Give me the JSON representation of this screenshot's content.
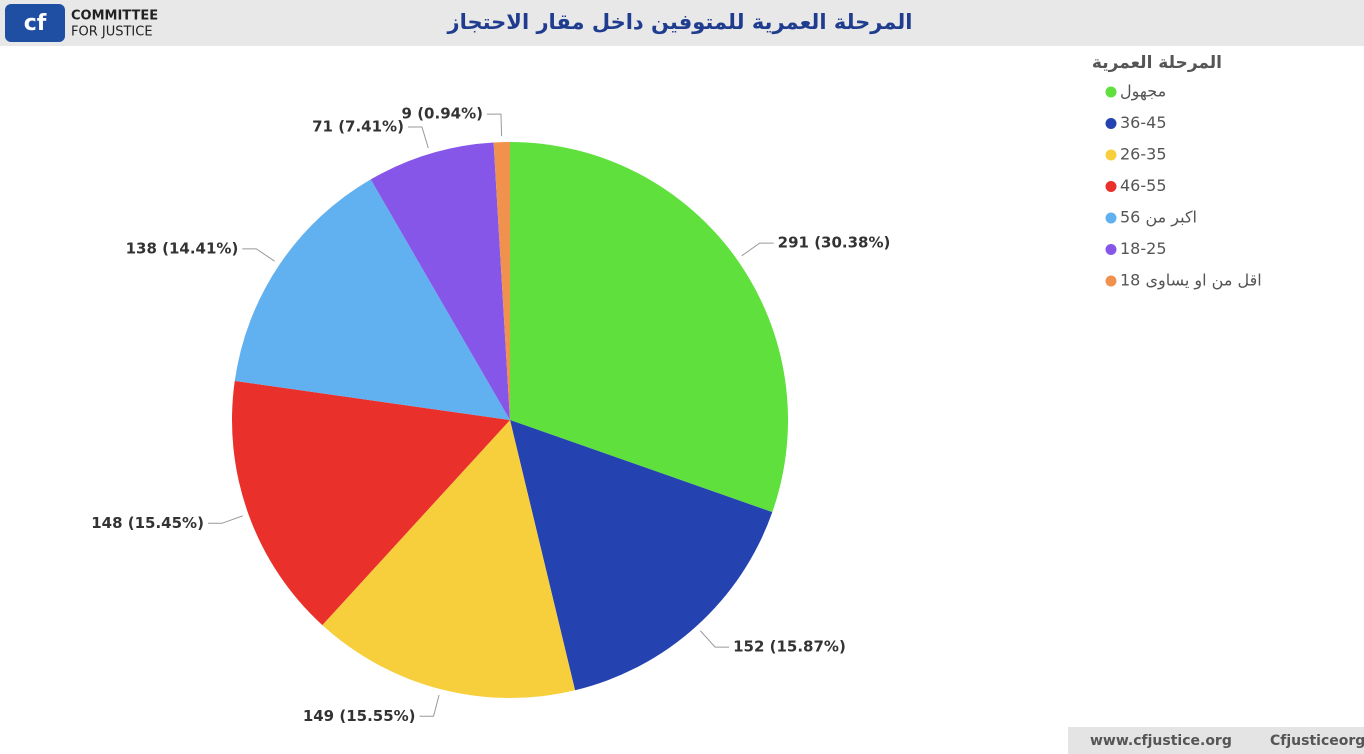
{
  "header": {
    "logo_line1": "COMMITTEE",
    "logo_line2": "FOR JUSTICE"
  },
  "footer": {
    "website": "www.cfjustice.org",
    "handle": "Cfjusticeorg"
  },
  "chart_data": {
    "type": "pie",
    "title": "المرحلة العمرية للمتوفين داخل مقار الاحتجاز",
    "legend_title": "المرحلة العمرية",
    "categories": [
      "مجهول",
      "36-45",
      "26-35",
      "46-55",
      "اكبر من 56",
      "18-25",
      "اقل من او يساوى 18"
    ],
    "values": [
      291,
      152,
      149,
      148,
      138,
      71,
      9
    ],
    "value_labels": [
      "291 (30.38%)",
      "152 (15.87%)",
      "149 (15.55%)",
      "148 (15.45%)",
      "138 (14.41%)",
      "71 (7.41%)",
      "9 (0.94%)"
    ],
    "colors": [
      "#5fe03c",
      "#2443b0",
      "#f7cf3d",
      "#e9302a",
      "#61b0f0",
      "#8656e8",
      "#f0924e"
    ],
    "legend": "right"
  }
}
